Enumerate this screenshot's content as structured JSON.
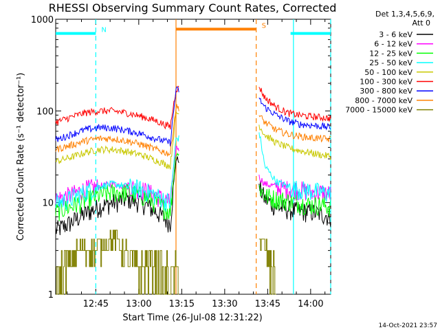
{
  "chart_data": {
    "type": "line",
    "title": "RHESSI Observing Summary Count Rates, Corrected",
    "xlabel": "Start Time (26-Jul-08 12:31:22)",
    "ylabel": "Corrected Count Rate (s⁻¹ detector⁻¹)",
    "yscale": "log",
    "ylim": [
      1,
      1000
    ],
    "xlim_minutes_after_1231": [
      0,
      96
    ],
    "x_ticks": [
      "12:45",
      "13:00",
      "13:15",
      "13:30",
      "13:45",
      "14:00"
    ],
    "y_ticks": [
      "1",
      "10",
      "100",
      "1000"
    ],
    "detector_label": "Det 1,3,4,5,6,9,",
    "attenuator_label": "Att 0",
    "timestamp": "14-Oct-2021 23:57",
    "flags": [
      {
        "label": "N",
        "color": "#00ffff",
        "start": "12:31",
        "end": "12:45",
        "level": 700
      },
      {
        "label": "",
        "color": "#00ffff",
        "start": "13:53",
        "end": "14:07",
        "level": 700
      },
      {
        "label": "S",
        "color": "#ff8000",
        "start": "13:13",
        "end": "13:41",
        "level": 780
      }
    ],
    "vertical_lines": [
      {
        "time": "12:45",
        "color": "#00ffff",
        "style": "dashed"
      },
      {
        "time": "13:13",
        "color": "#ff8000",
        "style": "solid"
      },
      {
        "time": "13:41",
        "color": "#ff8000",
        "style": "dashed"
      },
      {
        "time": "13:54",
        "color": "#00ffff",
        "style": "solid"
      },
      {
        "time": "14:07",
        "color": "#00ffff",
        "style": "dashed"
      }
    ],
    "gap": {
      "start": "13:14",
      "end": "13:42"
    },
    "series": [
      {
        "name": "3 - 6 keV",
        "color": "#000000",
        "x": [
          "12:31",
          "12:36",
          "12:41",
          "12:46",
          "12:51",
          "12:56",
          "13:01",
          "13:06",
          "13:11",
          "13:13",
          "13:42",
          "13:44",
          "13:48",
          "13:52",
          "13:56",
          "14:00",
          "14:04",
          "14:07"
        ],
        "values": [
          5,
          6,
          7.5,
          9,
          10,
          11,
          10,
          8,
          6,
          30,
          15,
          11,
          9,
          8.5,
          8,
          8,
          7.5,
          7
        ]
      },
      {
        "name": "6 - 12 keV",
        "color": "#ff00ff",
        "x": [
          "12:31",
          "12:36",
          "12:41",
          "12:46",
          "12:51",
          "12:56",
          "13:01",
          "13:06",
          "13:11",
          "13:13",
          "13:42",
          "13:44",
          "13:48",
          "13:52",
          "13:56",
          "14:00",
          "14:04",
          "14:07"
        ],
        "values": [
          11,
          12,
          14,
          15,
          16,
          15,
          14,
          12,
          10,
          40,
          19,
          16,
          15,
          14,
          14,
          13,
          13,
          12.5
        ]
      },
      {
        "name": "12 - 25 keV",
        "color": "#00ff00",
        "x": [
          "12:31",
          "12:36",
          "12:41",
          "12:46",
          "12:51",
          "12:56",
          "13:01",
          "13:06",
          "13:11",
          "13:13",
          "13:42",
          "13:44",
          "13:48",
          "13:52",
          "13:56",
          "14:00",
          "14:04",
          "14:07"
        ],
        "values": [
          8,
          9,
          10.5,
          12,
          13,
          13,
          12,
          10,
          8,
          35,
          15,
          12,
          11,
          10.5,
          10,
          9.5,
          9.5,
          9
        ]
      },
      {
        "name": "25 - 50 keV",
        "color": "#00ffff",
        "x": [
          "12:31",
          "12:36",
          "12:41",
          "12:46",
          "12:51",
          "12:56",
          "13:01",
          "13:06",
          "13:11",
          "13:13",
          "13:42",
          "13:44",
          "13:48",
          "13:52",
          "13:56",
          "14:00",
          "14:04",
          "14:07"
        ],
        "values": [
          10,
          11,
          13,
          15,
          16,
          15,
          14,
          12,
          10,
          50,
          60,
          25,
          17,
          15,
          14,
          13.5,
          13,
          12.5
        ]
      },
      {
        "name": "50 - 100 keV",
        "color": "#c8c800",
        "x": [
          "12:31",
          "12:36",
          "12:41",
          "12:46",
          "12:51",
          "12:56",
          "13:01",
          "13:06",
          "13:11",
          "13:13",
          "13:42",
          "13:44",
          "13:48",
          "13:52",
          "13:56",
          "14:00",
          "14:04",
          "14:07"
        ],
        "values": [
          28,
          31,
          35,
          38,
          38,
          36,
          33,
          29,
          25,
          95,
          70,
          55,
          45,
          40,
          37,
          35,
          33,
          32
        ]
      },
      {
        "name": "100 - 300 keV",
        "color": "#ff0000",
        "x": [
          "12:31",
          "12:36",
          "12:41",
          "12:46",
          "12:51",
          "12:56",
          "13:01",
          "13:06",
          "13:11",
          "13:13",
          "13:42",
          "13:44",
          "13:48",
          "13:52",
          "13:56",
          "14:00",
          "14:04",
          "14:07"
        ],
        "values": [
          75,
          85,
          95,
          100,
          100,
          95,
          87,
          78,
          67,
          175,
          185,
          140,
          110,
          95,
          90,
          87,
          85,
          83
        ]
      },
      {
        "name": "300 - 800 keV",
        "color": "#0000ff",
        "x": [
          "12:31",
          "12:36",
          "12:41",
          "12:46",
          "12:51",
          "12:56",
          "13:01",
          "13:06",
          "13:11",
          "13:13",
          "13:42",
          "13:44",
          "13:48",
          "13:52",
          "13:56",
          "14:00",
          "14:04",
          "14:07"
        ],
        "values": [
          48,
          55,
          62,
          66,
          65,
          61,
          56,
          50,
          45,
          170,
          135,
          110,
          90,
          78,
          72,
          70,
          68,
          66
        ]
      },
      {
        "name": "800 - 7000 keV",
        "color": "#ff8000",
        "x": [
          "12:31",
          "12:36",
          "12:41",
          "12:46",
          "12:51",
          "12:56",
          "13:01",
          "13:06",
          "13:11",
          "13:13",
          "13:42",
          "13:44",
          "13:48",
          "13:52",
          "13:56",
          "14:00",
          "14:04",
          "14:07"
        ],
        "values": [
          38,
          42,
          47,
          50,
          50,
          47,
          43,
          38,
          34,
          110,
          90,
          75,
          62,
          56,
          53,
          51,
          50,
          49
        ]
      },
      {
        "name": "7000 - 15000 keV",
        "color": "#808000",
        "x": [
          "12:31",
          "12:34",
          "12:37",
          "12:40",
          "12:43",
          "12:46",
          "12:49",
          "12:52",
          "12:55",
          "12:58",
          "13:01",
          "13:04",
          "13:07",
          "13:10",
          "13:12",
          "13:42",
          "13:44",
          "13:46",
          "13:48"
        ],
        "values": [
          1.5,
          2,
          2.5,
          3,
          3,
          3,
          4,
          4,
          3,
          2,
          2,
          2.5,
          2,
          1.5,
          1.5,
          4,
          3,
          2,
          1.5
        ]
      }
    ]
  }
}
